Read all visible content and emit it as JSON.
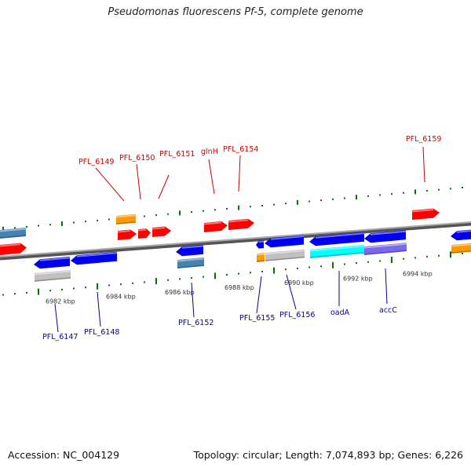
{
  "title": "Pseudomonas fluorescens Pf-5, complete genome",
  "accession": "Accession: NC_004129",
  "summary": "Topology: circular; Length: 7,074,893 bp; Genes: 6,226",
  "colors": {
    "forward_gene": "#ff0000",
    "reverse_gene": "#0000ee",
    "forward_label": "#cc0000",
    "reverse_label": "#000099",
    "tick": "#007700",
    "backbone": "#777777",
    "orange_feature": "#ff9900",
    "steelblue_feature": "#4682b4",
    "gray_feature": "#c0c0c0",
    "cyan_feature": "#00ffff",
    "slate_feature": "#7b68ee"
  },
  "kbp_labels": [
    "6982 kbp",
    "6984 kbp",
    "6986 kbp",
    "6988 kbp",
    "6990 kbp",
    "6992 kbp",
    "6994 kbp"
  ],
  "forward_genes": [
    {
      "label": "PFL_6149"
    },
    {
      "label": "PFL_6150"
    },
    {
      "label": "PFL_6151"
    },
    {
      "label": "glnH"
    },
    {
      "label": "PFL_6154"
    },
    {
      "label": "PFL_6159"
    }
  ],
  "reverse_genes": [
    {
      "label": "PFL_6147"
    },
    {
      "label": "PFL_6148"
    },
    {
      "label": "PFL_6152"
    },
    {
      "label": "PFL_6155"
    },
    {
      "label": "PFL_6156"
    },
    {
      "label": "oadA"
    },
    {
      "label": "accC"
    }
  ]
}
